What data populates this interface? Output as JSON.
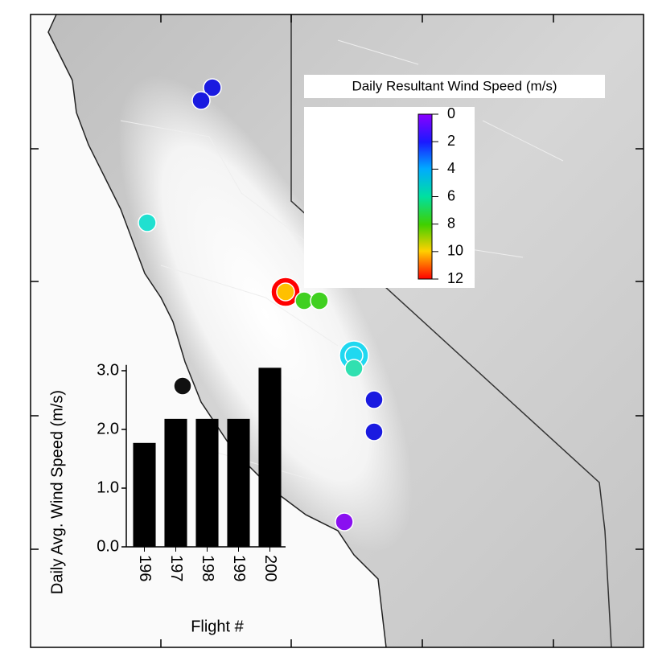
{
  "colorbar": {
    "title": "Daily Resultant Wind Speed (m/s)",
    "lim": [
      0,
      12
    ],
    "ticks": [
      0,
      2,
      4,
      6,
      8,
      10,
      12
    ]
  },
  "chart_data": {
    "type": "bar",
    "categories": [
      "196",
      "197",
      "198",
      "199",
      "200"
    ],
    "values": [
      1.77,
      2.18,
      2.18,
      2.18,
      3.05
    ],
    "color": "#000000",
    "ylim": [
      0,
      3.1
    ],
    "yticks": [
      {
        "value": 0,
        "label": "0.0"
      },
      {
        "value": 1,
        "label": "1.0"
      },
      {
        "value": 2,
        "label": "2.0"
      },
      {
        "value": 3,
        "label": "3.0"
      }
    ],
    "y_label": "Daily Avg. Wind Speed (m/s)",
    "x_label": "Flight #"
  }
}
